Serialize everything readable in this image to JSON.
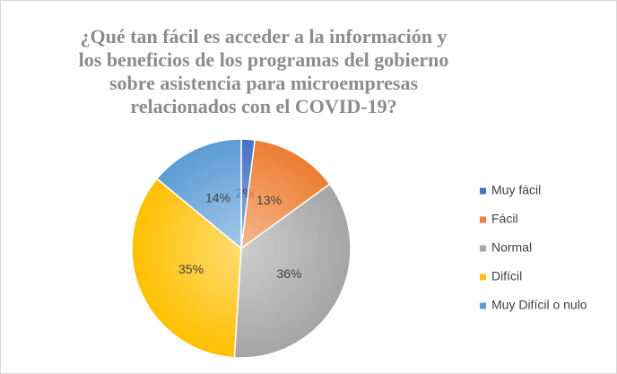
{
  "chart_data": {
    "type": "pie",
    "title": "¿Qué tan fácil es acceder a la información y los beneficios de los programas del gobierno sobre asistencia para microempresas relacionados con el COVID-19?",
    "categories": [
      "Muy fácil",
      "Fácil",
      "Normal",
      "Difícil",
      "Muy Difícil o nulo"
    ],
    "values": [
      2,
      13,
      36,
      35,
      14
    ],
    "value_labels": [
      "2%",
      "13%",
      "36%",
      "35%",
      "14%"
    ],
    "colors": [
      "#4472c4",
      "#ed7d31",
      "#a5a5a5",
      "#ffc000",
      "#5b9bd5"
    ],
    "legend": "right"
  }
}
